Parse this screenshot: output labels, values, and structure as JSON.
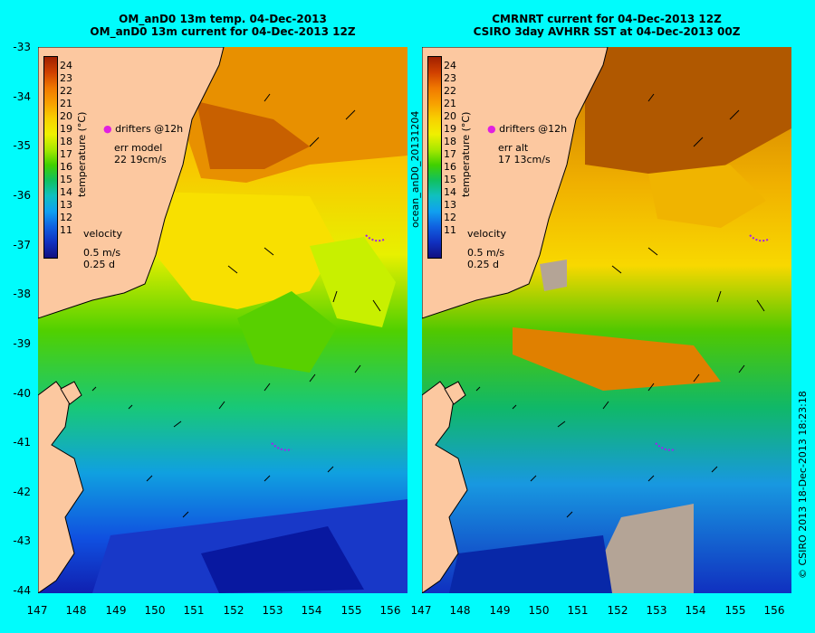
{
  "left_panel": {
    "title_line1": "OM_anD0 13m temp. 04-Dec-2013",
    "title_line2": "OM_anD0 13m current for 04-Dec-2013 12Z",
    "drifters_label": "drifters @12h",
    "err_label": "err model",
    "err_value": "22 19cm/s",
    "velocity_label": "velocity",
    "velocity_scale": "0.5 m/s",
    "velocity_time": "0.25 d"
  },
  "right_panel": {
    "title_line1": "CMRNRT current for 04-Dec-2013 12Z",
    "title_line2": "CSIRO 3day AVHRR SST at 04-Dec-2013 00Z",
    "drifters_label": "drifters @12h",
    "err_label": "err alt",
    "err_value": "17 13cm/s",
    "velocity_label": "velocity",
    "velocity_scale": "0.5 m/s",
    "velocity_time": "0.25 d"
  },
  "colorbar": {
    "unit_label": "temperature (°C)",
    "ticks": [
      "24",
      "23",
      "22",
      "21",
      "20",
      "19",
      "18",
      "17",
      "16",
      "15",
      "14",
      "13",
      "12",
      "11"
    ]
  },
  "axes": {
    "latitudes": [
      "-33",
      "-34",
      "-35",
      "-36",
      "-37",
      "-38",
      "-39",
      "-40",
      "-41",
      "-42",
      "-43",
      "-44"
    ],
    "longitudes": [
      "147",
      "148",
      "149",
      "150",
      "151",
      "152",
      "153",
      "154",
      "155",
      "156"
    ]
  },
  "middle_label": "ocean_anD0_20131204",
  "credit": "© CSIRO 2013  18-Dec-2013 18:23:18",
  "colors": {
    "background": "#00fcfc",
    "land": "#fcc8a0",
    "drifter": "#a020f0",
    "missing": "#b4a496"
  }
}
